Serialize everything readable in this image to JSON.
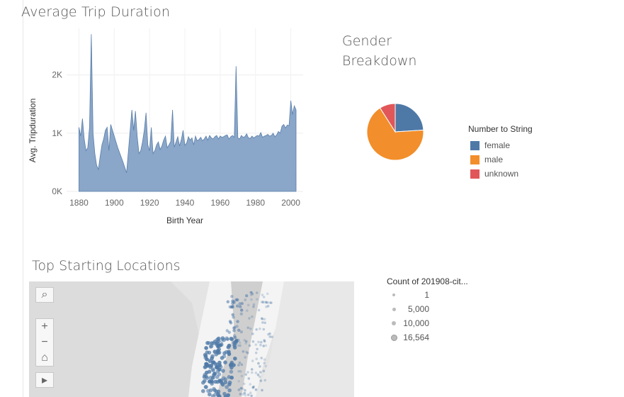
{
  "trip_panel": {
    "title": "Average Trip Duration",
    "chart_data": {
      "type": "area",
      "title": "Average Trip Duration",
      "xlabel": "Birth Year",
      "ylabel": "Avg. Tripduration",
      "x_ticks": [
        "1880",
        "1900",
        "1920",
        "1940",
        "1960",
        "1980",
        "2000"
      ],
      "y_ticks": [
        "0K",
        "1K",
        "2K"
      ],
      "xlim": [
        1873,
        2007
      ],
      "ylim": [
        0,
        2800
      ],
      "color": "#8aa6c8",
      "line_color": "#5a7fab",
      "x": [
        1880,
        1881,
        1882,
        1883,
        1884,
        1885,
        1886,
        1887,
        1888,
        1889,
        1890,
        1891,
        1892,
        1893,
        1894,
        1895,
        1896,
        1897,
        1898,
        1899,
        1900,
        1901,
        1902,
        1905,
        1907,
        1910,
        1911,
        1912,
        1913,
        1914,
        1915,
        1916,
        1917,
        1918,
        1919,
        1920,
        1921,
        1922,
        1923,
        1924,
        1925,
        1926,
        1927,
        1928,
        1929,
        1930,
        1931,
        1932,
        1933,
        1934,
        1935,
        1936,
        1937,
        1938,
        1939,
        1940,
        1941,
        1942,
        1943,
        1944,
        1945,
        1946,
        1947,
        1948,
        1949,
        1950,
        1951,
        1952,
        1953,
        1954,
        1955,
        1956,
        1957,
        1958,
        1959,
        1960,
        1961,
        1962,
        1963,
        1964,
        1965,
        1966,
        1967,
        1968,
        1969,
        1970,
        1971,
        1972,
        1973,
        1974,
        1975,
        1976,
        1977,
        1978,
        1979,
        1980,
        1981,
        1982,
        1983,
        1984,
        1985,
        1986,
        1987,
        1988,
        1989,
        1990,
        1991,
        1992,
        1993,
        1994,
        1995,
        1996,
        1997,
        1998,
        1999,
        2000,
        2001,
        2002,
        2003
      ],
      "y": [
        1100,
        950,
        1250,
        900,
        700,
        750,
        1100,
        2700,
        1000,
        650,
        450,
        380,
        600,
        800,
        900,
        1050,
        1100,
        700,
        1150,
        1050,
        950,
        850,
        750,
        500,
        320,
        1400,
        1050,
        1380,
        950,
        650,
        700,
        850,
        1050,
        1350,
        800,
        700,
        1100,
        650,
        700,
        800,
        850,
        720,
        780,
        880,
        950,
        750,
        800,
        860,
        1400,
        760,
        850,
        940,
        780,
        890,
        1050,
        790,
        830,
        940,
        880,
        920,
        800,
        950,
        870,
        890,
        930,
        870,
        900,
        950,
        880,
        960,
        920,
        900,
        940,
        960,
        900,
        950,
        930,
        940,
        960,
        970,
        900,
        940,
        960,
        930,
        2150,
        920,
        900,
        960,
        930,
        940,
        990,
        920,
        910,
        950,
        920,
        940,
        960,
        950,
        1010,
        930,
        950,
        960,
        980,
        950,
        960,
        1000,
        940,
        970,
        1030,
        1000,
        1120,
        1150,
        1090,
        1140,
        1130,
        1560,
        1320,
        1470,
        1400
      ]
    }
  },
  "gender_panel": {
    "title_line1": "Gender",
    "title_line2": "Breakdown",
    "chart_data": {
      "type": "pie",
      "categories": [
        "female",
        "male",
        "unknown"
      ],
      "values": [
        24,
        67,
        9
      ],
      "colors": [
        "#4e79a7",
        "#f28e2b",
        "#e15759"
      ],
      "legend_title": "Number to String",
      "legend_placement": "right"
    }
  },
  "locations_panel": {
    "title": "Top Starting Locations",
    "size_legend_title": "Count of 201908-cit...",
    "size_legend_values": [
      "1",
      "5,000",
      "10,000",
      "16,564"
    ],
    "map_tools": {
      "search": "⌕",
      "zoom_in": "+",
      "zoom_out": "−",
      "home": "⌂",
      "expand": "▸"
    },
    "point_color": "#4e79a7"
  }
}
